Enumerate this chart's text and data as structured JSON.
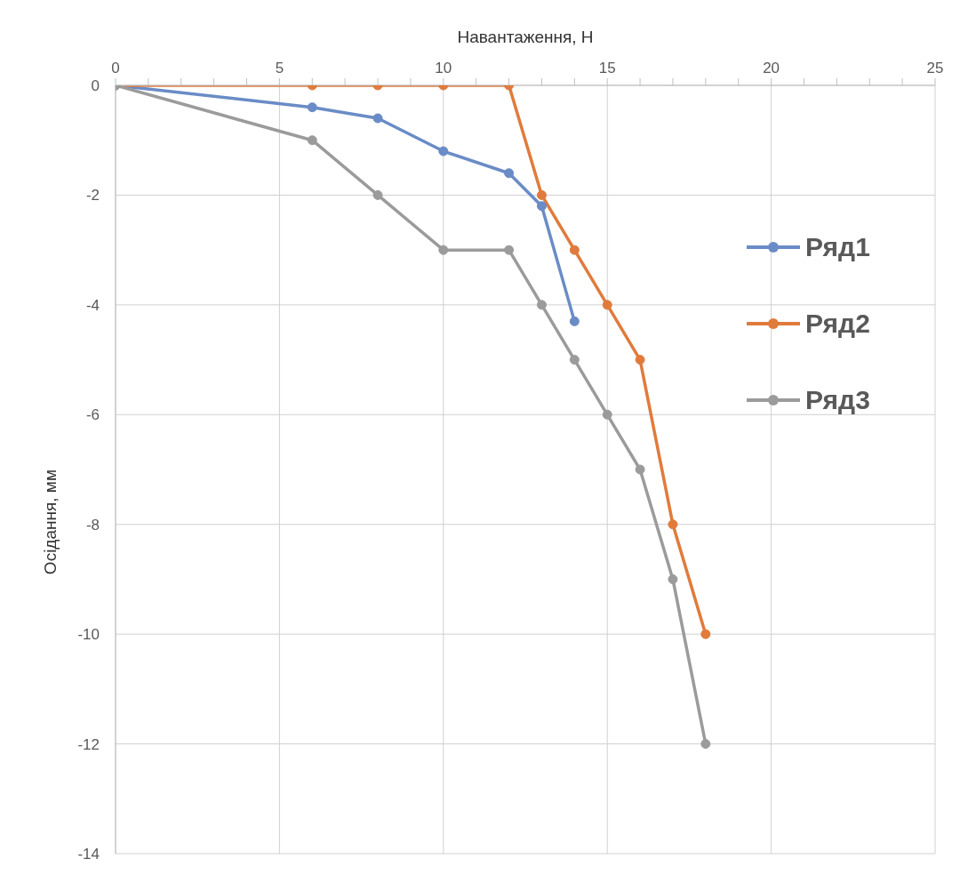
{
  "chart_data": {
    "type": "line",
    "xlabel": "Навантаження, Н",
    "ylabel": "Осідання, мм",
    "xlim": [
      0,
      25
    ],
    "xticks": [
      0,
      {
        "value": 1,
        "label": null
      },
      {
        "value": 2,
        "label": null
      },
      {
        "value": 3,
        "label": null
      },
      {
        "value": 4,
        "label": null
      },
      5,
      {
        "value": 6,
        "label": null
      },
      {
        "value": 7,
        "label": null
      },
      {
        "value": 8,
        "label": null
      },
      {
        "value": 9,
        "label": null
      },
      10,
      {
        "value": 11,
        "label": null
      },
      {
        "value": 12,
        "label": null
      },
      {
        "value": 13,
        "label": null
      },
      {
        "value": 14,
        "label": null
      },
      15,
      {
        "value": 16,
        "label": null
      },
      {
        "value": 17,
        "label": null
      },
      {
        "value": 18,
        "label": null
      },
      {
        "value": 19,
        "label": null
      },
      20,
      {
        "value": 21,
        "label": null
      },
      {
        "value": 22,
        "label": null
      },
      {
        "value": 23,
        "label": null
      },
      {
        "value": 24,
        "label": null
      },
      25
    ],
    "ylim": [
      -14,
      0
    ],
    "yticks": [
      -14,
      -12,
      -10,
      -8,
      -6,
      -4,
      -2,
      0
    ],
    "grid": true,
    "legend": "right",
    "marker": "circle",
    "line_style": "solid",
    "series": [
      {
        "name": "Ряд1",
        "color": "#6a8cc6",
        "x": [
          0,
          6,
          8,
          10,
          12,
          13,
          14
        ],
        "values": [
          0,
          -0.4,
          -0.6,
          -1.2,
          -1.6,
          -2.2,
          -4.3
        ]
      },
      {
        "name": "Ряд2",
        "color": "#e07b3c",
        "x": [
          0,
          6,
          8,
          10,
          12,
          13,
          14,
          15,
          16,
          17,
          18
        ],
        "values": [
          0,
          0,
          0,
          0,
          0,
          -2,
          -3,
          -4,
          -5,
          -8,
          -10
        ]
      },
      {
        "name": "Ряд3",
        "color": "#9b9b9b",
        "x": [
          0,
          6,
          8,
          10,
          12,
          13,
          14,
          15,
          16,
          17,
          18
        ],
        "values": [
          0,
          -1,
          -2,
          -3,
          -3,
          -4,
          -5,
          -6,
          -7,
          -9,
          -12
        ]
      }
    ]
  }
}
